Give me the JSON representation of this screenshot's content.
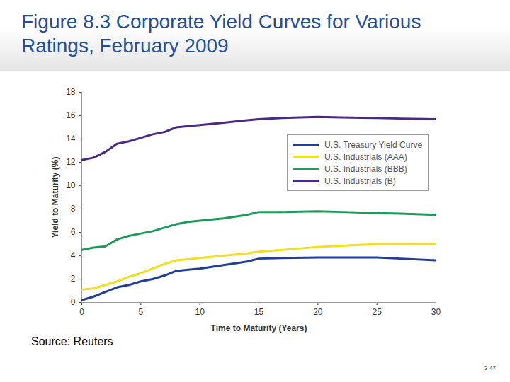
{
  "chart_data": {
    "type": "line",
    "title": "Figure 8.3  Corporate Yield Curves for Various Ratings, February 2009",
    "x_label": "Time to Maturity (Years)",
    "y_label": "Yield to Maturity (%)",
    "source": "Source: Reuters",
    "page": "3-47",
    "x": [
      0,
      1,
      2,
      3,
      4,
      5,
      6,
      7,
      8,
      9,
      10,
      12,
      14,
      15,
      17,
      20,
      22,
      25,
      27,
      30
    ],
    "series": [
      {
        "name": "U.S. Treasury Yield Curve",
        "color": "#1f3d99",
        "values": [
          0.2,
          0.5,
          0.9,
          1.3,
          1.5,
          1.8,
          2.0,
          2.3,
          2.7,
          2.8,
          2.9,
          3.2,
          3.5,
          3.75,
          3.8,
          3.85,
          3.85,
          3.85,
          3.75,
          3.6
        ]
      },
      {
        "name": "U.S. Industrials (AAA)",
        "color": "#f2e01f",
        "values": [
          1.1,
          1.2,
          1.5,
          1.8,
          2.2,
          2.5,
          2.9,
          3.3,
          3.6,
          3.7,
          3.8,
          4.0,
          4.2,
          4.35,
          4.5,
          4.75,
          4.85,
          5.0,
          5.0,
          5.0
        ]
      },
      {
        "name": "U.S. Industrials (BBB)",
        "color": "#1f9a5a",
        "values": [
          4.5,
          4.7,
          4.8,
          5.4,
          5.7,
          5.9,
          6.1,
          6.4,
          6.7,
          6.9,
          7.0,
          7.2,
          7.5,
          7.75,
          7.75,
          7.8,
          7.75,
          7.65,
          7.6,
          7.5
        ]
      },
      {
        "name": "U.S. Industrials (B)",
        "color": "#4b2a86",
        "values": [
          12.2,
          12.4,
          12.9,
          13.6,
          13.8,
          14.1,
          14.4,
          14.6,
          15.0,
          15.1,
          15.2,
          15.4,
          15.6,
          15.7,
          15.8,
          15.9,
          15.85,
          15.8,
          15.75,
          15.7
        ]
      }
    ],
    "xlim": [
      0,
      30
    ],
    "xticks": [
      0,
      5,
      10,
      15,
      20,
      25,
      30
    ],
    "ylim": [
      0,
      18
    ],
    "yticks": [
      0,
      2,
      4,
      6,
      8,
      10,
      12,
      14,
      16,
      18
    ],
    "grid": false,
    "legend": "upper right"
  }
}
